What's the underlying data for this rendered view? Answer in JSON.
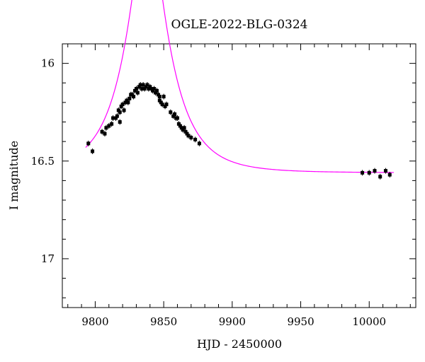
{
  "chart_data": {
    "type": "scatter",
    "title": "OGLE-2022-BLG-0324",
    "xlabel": "HJD - 2450000",
    "ylabel": "I magnitude",
    "xlim": [
      9776,
      10034
    ],
    "ylim": [
      17.25,
      15.9
    ],
    "y_inverted": true,
    "xticks": [
      9800,
      9850,
      9900,
      9950,
      10000
    ],
    "xtick_labels": [
      "9800",
      "9850",
      "9900",
      "9950",
      "10000"
    ],
    "yticks": [
      16,
      16.5,
      17
    ],
    "ytick_labels": [
      "16",
      "16.5",
      "17"
    ],
    "grid": false,
    "colors": {
      "points": "#000000",
      "model": "#ff00ff",
      "axes": "#000000"
    },
    "series": [
      {
        "type": "scatter",
        "points": [
          [
            9795,
            16.41
          ],
          [
            9798,
            16.45
          ],
          [
            9805,
            16.35
          ],
          [
            9807,
            16.36
          ],
          [
            9808,
            16.33
          ],
          [
            9810,
            16.32
          ],
          [
            9812,
            16.31
          ],
          [
            9813,
            16.28
          ],
          [
            9815,
            16.28
          ],
          [
            9816,
            16.27
          ],
          [
            9817,
            16.24
          ],
          [
            9818,
            16.25
          ],
          [
            9819,
            16.22
          ],
          [
            9820,
            16.21
          ],
          [
            9821,
            16.24
          ],
          [
            9822,
            16.2
          ],
          [
            9823,
            16.19
          ],
          [
            9824,
            16.2
          ],
          [
            9825,
            16.18
          ],
          [
            9826,
            16.16
          ],
          [
            9827,
            16.16
          ],
          [
            9828,
            16.17
          ],
          [
            9829,
            16.14
          ],
          [
            9830,
            16.13
          ],
          [
            9831,
            16.15
          ],
          [
            9832,
            16.12
          ],
          [
            9833,
            16.11
          ],
          [
            9834,
            16.13
          ],
          [
            9835,
            16.11
          ],
          [
            9836,
            16.13
          ],
          [
            9837,
            16.12
          ],
          [
            9838,
            16.11
          ],
          [
            9839,
            16.13
          ],
          [
            9840,
            16.12
          ],
          [
            9841,
            16.13
          ],
          [
            9842,
            16.14
          ],
          [
            9843,
            16.13
          ],
          [
            9844,
            16.15
          ],
          [
            9845,
            16.14
          ],
          [
            9846,
            16.16
          ],
          [
            9847,
            16.17
          ],
          [
            9848,
            16.2
          ],
          [
            9849,
            16.21
          ],
          [
            9850,
            16.17
          ],
          [
            9851,
            16.22
          ],
          [
            9852,
            16.21
          ],
          [
            9855,
            16.25
          ],
          [
            9857,
            16.27
          ],
          [
            9858,
            16.26
          ],
          [
            9859,
            16.28
          ],
          [
            9860,
            16.28
          ],
          [
            9861,
            16.31
          ],
          [
            9862,
            16.32
          ],
          [
            9863,
            16.33
          ],
          [
            9864,
            16.34
          ],
          [
            9865,
            16.33
          ],
          [
            9866,
            16.35
          ],
          [
            9867,
            16.36
          ],
          [
            9868,
            16.37
          ],
          [
            9870,
            16.38
          ],
          [
            9873,
            16.39
          ],
          [
            9876,
            16.41
          ],
          [
            9818,
            16.3
          ],
          [
            9995,
            16.56
          ],
          [
            10000,
            16.56
          ],
          [
            10004,
            16.55
          ],
          [
            10008,
            16.58
          ],
          [
            10012,
            16.55
          ],
          [
            10015,
            16.57
          ],
          [
            9847,
            16.19
          ]
        ]
      },
      {
        "type": "line",
        "model_params": {
          "t0": 9838,
          "u0": 0.3,
          "tE": 30,
          "baseline": 16.56
        },
        "x_range": [
          9793,
          10018
        ]
      }
    ]
  }
}
